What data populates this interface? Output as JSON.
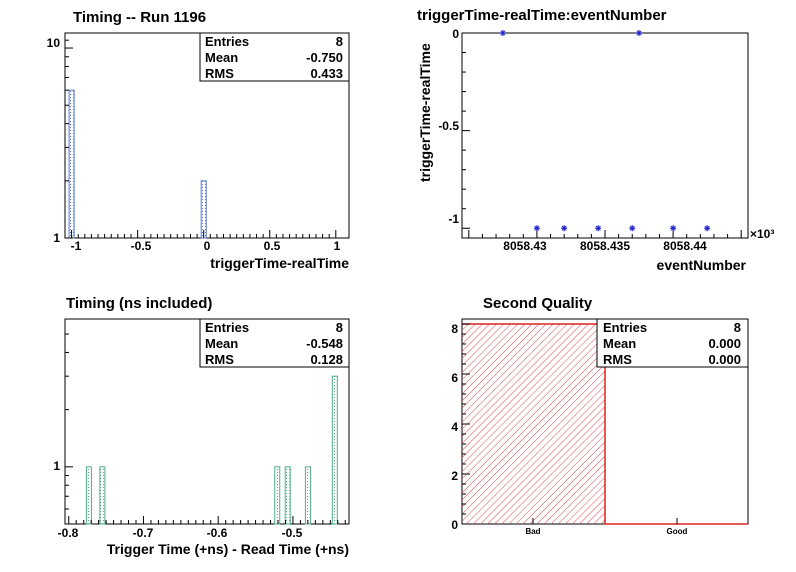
{
  "chart_data": [
    {
      "type": "bar",
      "title": "Timing -- Run 1196",
      "xlabel": "triggerTime-realTime",
      "ylabel": "",
      "x_ticks": [
        "-1",
        "-0.5",
        "0",
        "0.5",
        "1"
      ],
      "y_ticks": [
        "1",
        "10"
      ],
      "xlim": [
        -1.05,
        1.1
      ],
      "ylim": [
        1,
        12
      ],
      "y_scale": "log",
      "bars": [
        {
          "x": -1.0,
          "value": 6
        },
        {
          "x": 0.0,
          "value": 2
        }
      ],
      "stats": {
        "entries_label": "Entries",
        "entries": "8",
        "mean_label": "Mean",
        "mean": "-0.750",
        "rms_label": "RMS",
        "rms": "0.433"
      },
      "colors": {
        "bar": "#5577cc",
        "fill": "#bcd0ee"
      }
    },
    {
      "type": "scatter",
      "title": "triggerTime-realTime:eventNumber",
      "xlabel": "eventNumber",
      "ylabel": "triggerTime-realTime",
      "x_ticks": [
        "8058.43",
        "8058.435",
        "8058.44"
      ],
      "x_multiplier": "×10³",
      "y_ticks": [
        "0",
        "-0.5",
        "-1"
      ],
      "xlim": [
        8058.4245,
        8058.4455
      ],
      "ylim": [
        -1.05,
        0.0
      ],
      "points": [
        {
          "x": 8058.4275,
          "y": 0
        },
        {
          "x": 8058.43,
          "y": -1
        },
        {
          "x": 8058.432,
          "y": -1
        },
        {
          "x": 8058.4345,
          "y": -1
        },
        {
          "x": 8058.437,
          "y": -1
        },
        {
          "x": 8058.4375,
          "y": 0
        },
        {
          "x": 8058.44,
          "y": -1
        },
        {
          "x": 8058.4425,
          "y": -1
        }
      ],
      "colors": {
        "marker": "#2222cc"
      }
    },
    {
      "type": "bar",
      "title": "Timing (ns included)",
      "xlabel": "Trigger Time (+ns) - Read Time (+ns)",
      "ylabel": "",
      "x_ticks": [
        "-0.8",
        "-0.7",
        "-0.6",
        "-0.5"
      ],
      "y_ticks": [
        "1"
      ],
      "xlim": [
        -0.805,
        -0.425
      ],
      "ylim": [
        0.5,
        6
      ],
      "y_scale": "log",
      "bars": [
        {
          "x": -0.773,
          "value": 1
        },
        {
          "x": -0.755,
          "value": 1
        },
        {
          "x": -0.521,
          "value": 1
        },
        {
          "x": -0.507,
          "value": 1
        },
        {
          "x": -0.48,
          "value": 1
        },
        {
          "x": -0.444,
          "value": 3
        }
      ],
      "stats": {
        "entries_label": "Entries",
        "entries": "8",
        "mean_label": "Mean",
        "mean": "-0.548",
        "rms_label": "RMS",
        "rms": "0.128"
      },
      "colors": {
        "bar": "#4fae83",
        "fill": "#d5eee2"
      }
    },
    {
      "type": "bar",
      "title": "Second Quality",
      "xlabel": "",
      "ylabel": "",
      "categories": [
        "Bad",
        "Good"
      ],
      "values": [
        8,
        0
      ],
      "y_ticks": [
        "0",
        "2",
        "4",
        "6",
        "8"
      ],
      "ylim": [
        0,
        8.2
      ],
      "stats": {
        "entries_label": "Entries",
        "entries": "8",
        "mean_label": "Mean",
        "mean": "0.000",
        "rms_label": "RMS",
        "rms": "0.000"
      },
      "colors": {
        "bar": "#dd2222",
        "hatch": "#e04848"
      }
    }
  ]
}
